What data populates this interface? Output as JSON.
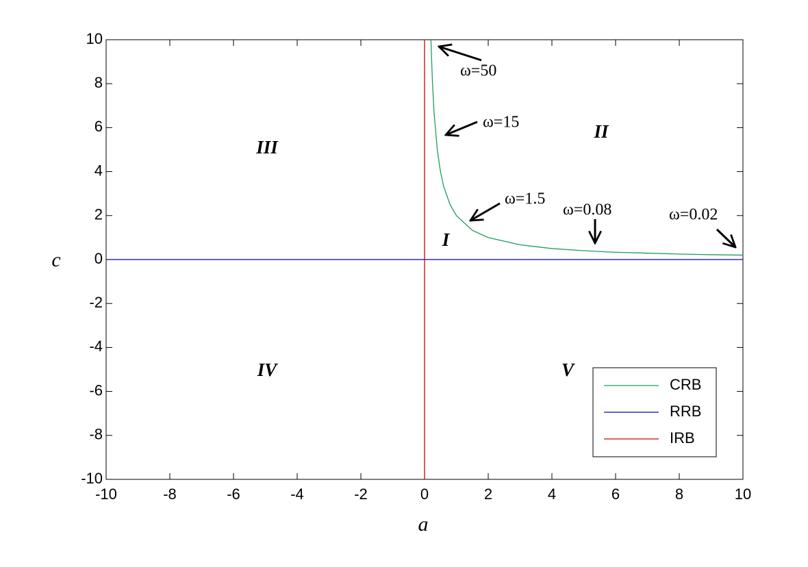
{
  "chart_data": {
    "type": "line",
    "xlabel": "a",
    "ylabel": "c",
    "xlim": [
      -10,
      10
    ],
    "ylim": [
      -10,
      10
    ],
    "xticks": [
      -10,
      -8,
      -6,
      -4,
      -2,
      0,
      2,
      4,
      6,
      8,
      10
    ],
    "yticks": [
      -10,
      -8,
      -6,
      -4,
      -2,
      0,
      2,
      4,
      6,
      8,
      10
    ],
    "grid": false,
    "legend": "southeast",
    "series": [
      {
        "name": "CRB",
        "color": "#1b9e5e",
        "x": [
          0.2,
          0.25,
          0.3,
          0.4,
          0.5,
          0.6,
          0.8,
          1,
          1.5,
          2,
          3,
          4,
          5,
          6,
          7,
          8,
          9,
          10
        ],
        "values": [
          10,
          8,
          6.67,
          5,
          4,
          3.33,
          2.5,
          2,
          1.33,
          1,
          0.67,
          0.5,
          0.4,
          0.33,
          0.29,
          0.25,
          0.22,
          0.2
        ]
      },
      {
        "name": "RRB",
        "color": "#0000cc",
        "x": [
          -10,
          10
        ],
        "values": [
          0,
          0
        ]
      },
      {
        "name": "IRB",
        "color": "#cc0000",
        "x": [
          0,
          0
        ],
        "values": [
          -10,
          10
        ]
      }
    ],
    "annotations": [
      "ω=50",
      "ω=15",
      "ω=1.5",
      "ω=0.08",
      "ω=0.02"
    ],
    "region_labels": [
      "I",
      "II",
      "III",
      "IV",
      "V"
    ]
  }
}
